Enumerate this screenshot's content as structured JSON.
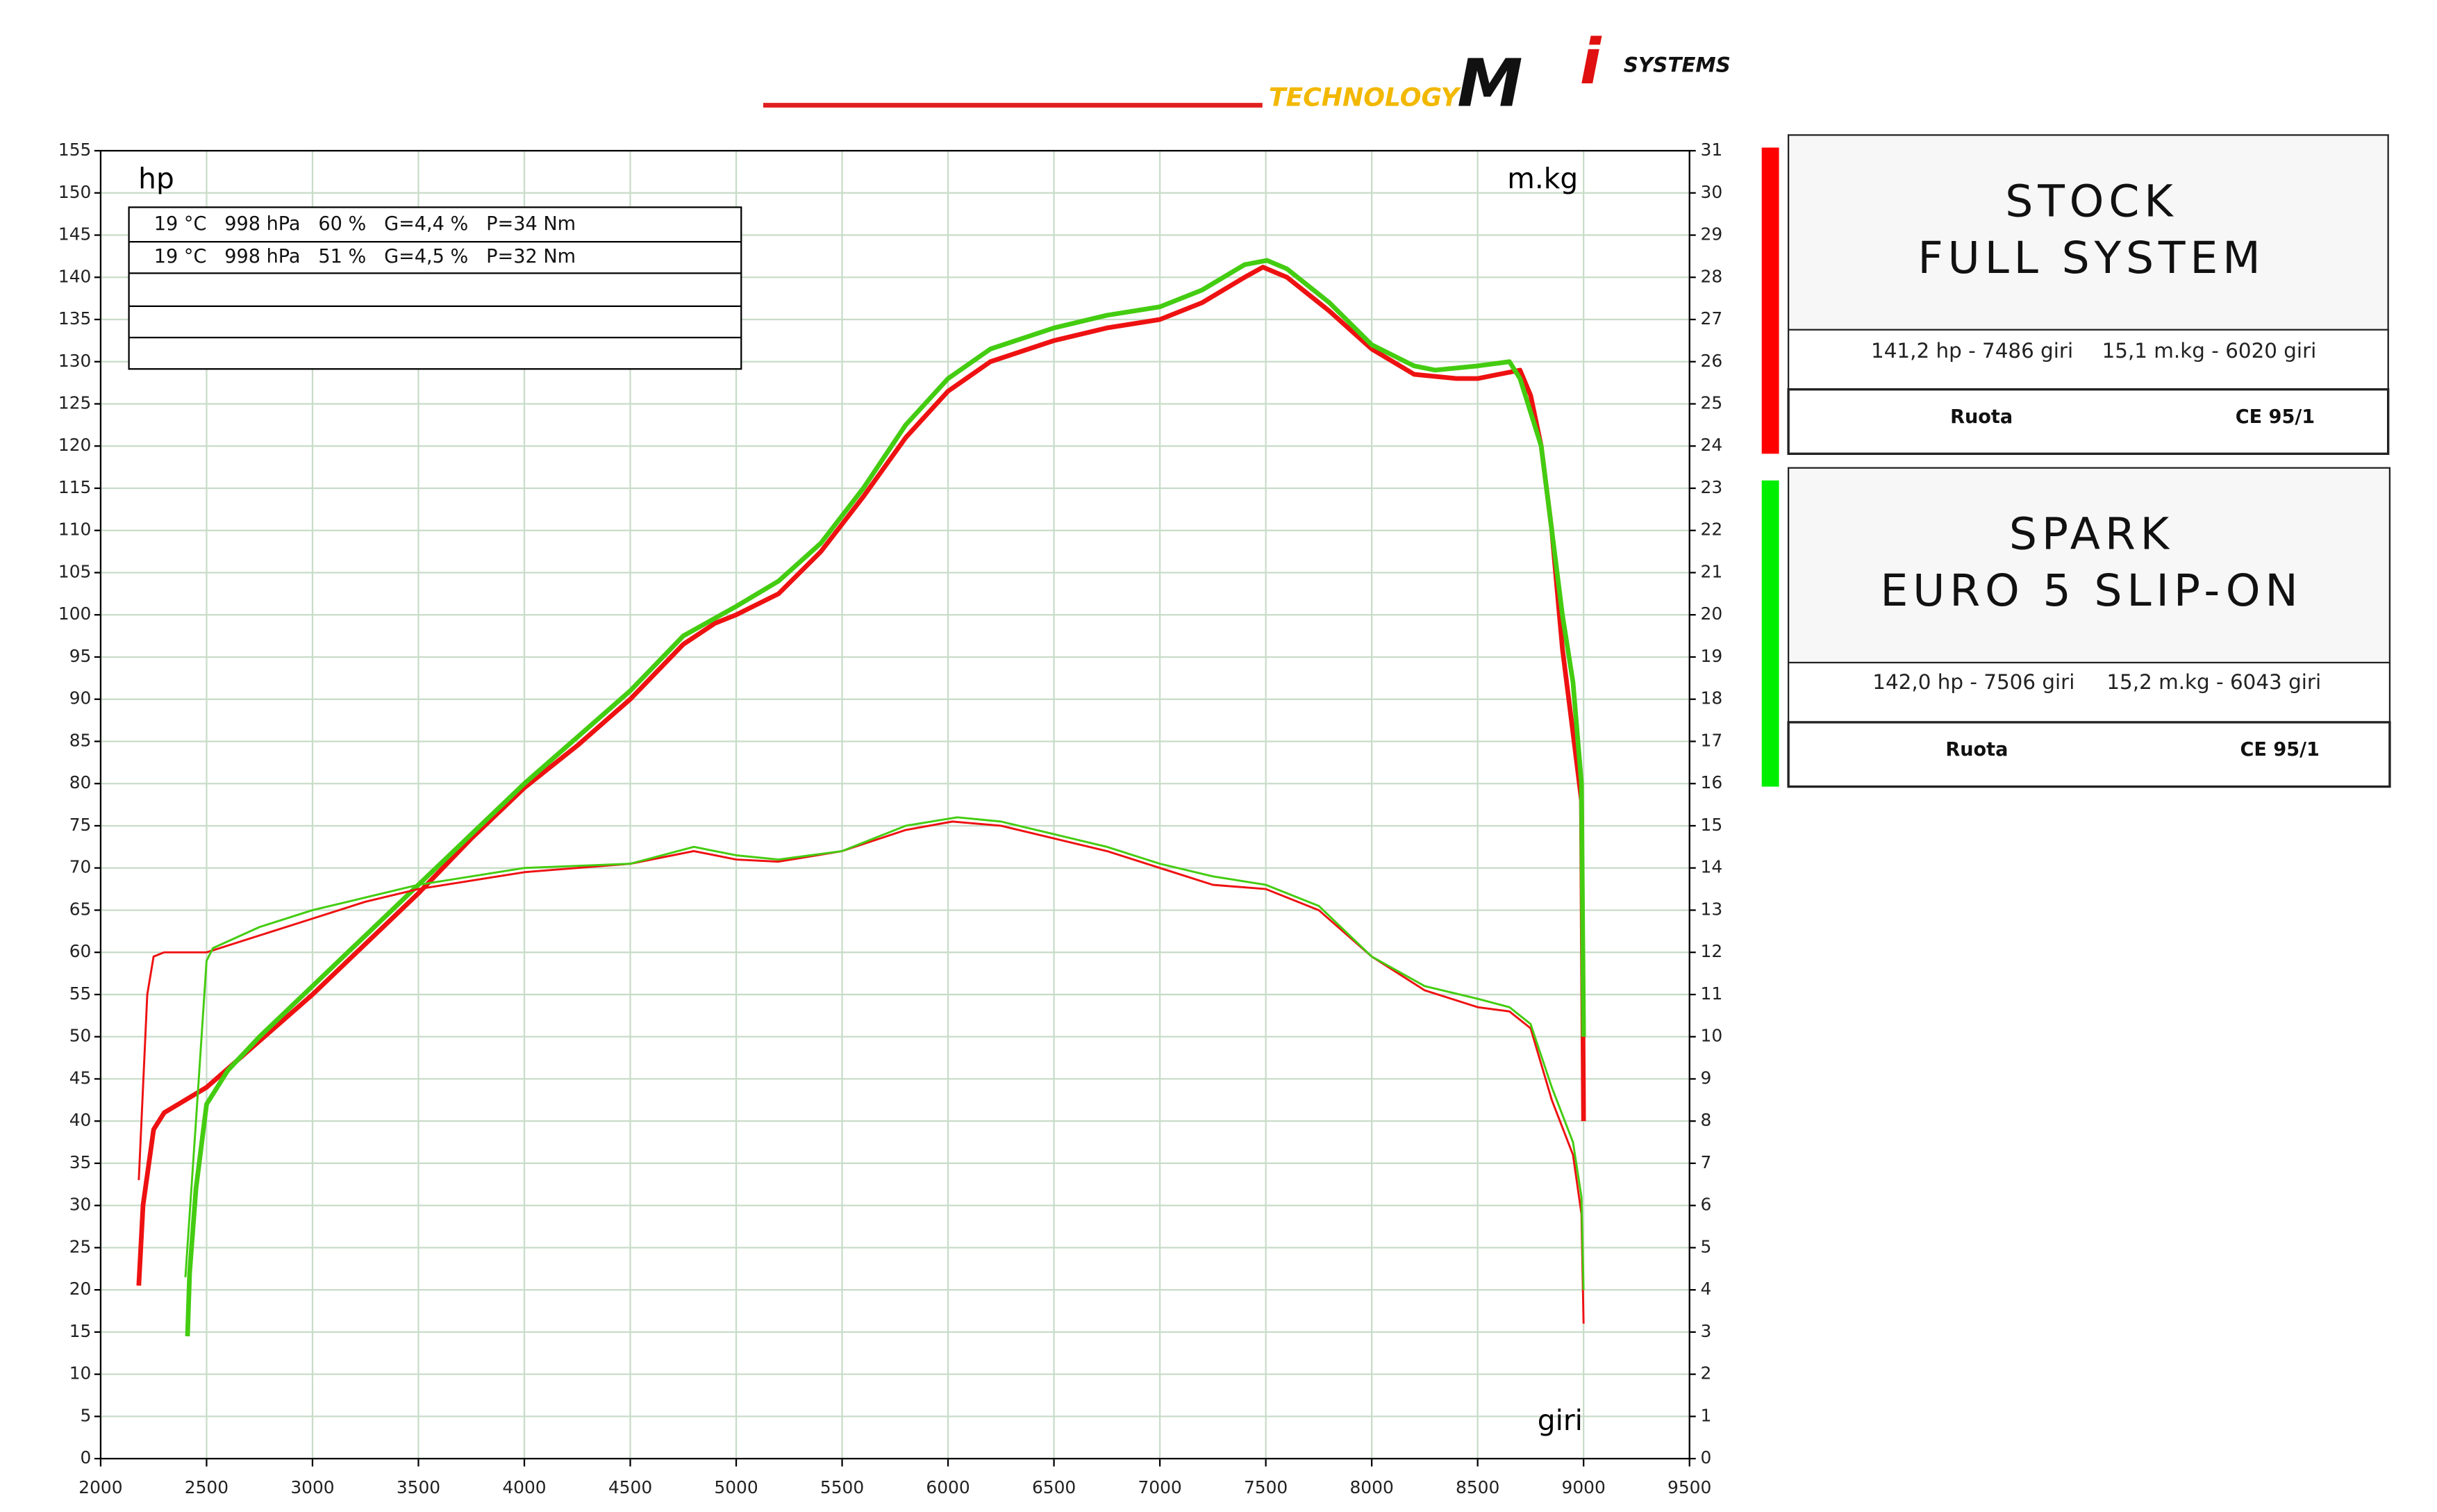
{
  "logo": {
    "brand": "TECHNOLOGY",
    "mark": "M",
    "accent": "i",
    "name": "SYSTEMS"
  },
  "conditions": [
    "19 °C   998 hPa   60 %   G=4,4 %   P=34 Nm",
    "19 °C   998 hPa   51 %   G=4,5 %   P=32 Nm"
  ],
  "panels": [
    {
      "title_lines": [
        "STOCK",
        "FULL SYSTEM"
      ],
      "power": "141,2 hp - 7486 giri",
      "torque": "15,1 m.kg - 6020 giri",
      "mode": "Ruota",
      "norm": "CE 95/1",
      "color": "#ff0000"
    },
    {
      "title_lines": [
        "SPARK",
        "EURO 5 SLIP-ON"
      ],
      "power": "142,0 hp - 7506 giri",
      "torque": "15,2 m.kg - 6043 giri",
      "mode": "Ruota",
      "norm": "CE 95/1",
      "color": "#00ee00"
    }
  ],
  "chart_data": {
    "type": "line",
    "y_label": "hp",
    "y2_label": "m.kg",
    "x_label": "giri",
    "xlim": [
      2000,
      9500
    ],
    "xticks": [
      2000,
      2500,
      3000,
      3500,
      4000,
      4500,
      5000,
      5500,
      6000,
      6500,
      7000,
      7500,
      8000,
      8500,
      9000,
      9500
    ],
    "ylim": [
      0,
      155
    ],
    "yticks": [
      0,
      5,
      10,
      15,
      20,
      25,
      30,
      35,
      40,
      45,
      50,
      55,
      60,
      65,
      70,
      75,
      80,
      85,
      90,
      95,
      100,
      105,
      110,
      115,
      120,
      125,
      130,
      135,
      140,
      145,
      150,
      155
    ],
    "y2lim": [
      0,
      31
    ],
    "y2ticks": [
      0,
      1,
      2,
      3,
      4,
      5,
      6,
      7,
      8,
      9,
      10,
      11,
      12,
      13,
      14,
      15,
      16,
      17,
      18,
      19,
      20,
      21,
      22,
      23,
      24,
      25,
      26,
      27,
      28,
      29,
      30,
      31
    ],
    "grid": true,
    "series": [
      {
        "name": "STOCK FULL SYSTEM",
        "color": "#ee1111",
        "width": 3,
        "x": [
          2180,
          2200,
          2250,
          2300,
          2400,
          2500,
          2750,
          3000,
          3250,
          3500,
          3750,
          4000,
          4250,
          4500,
          4750,
          4900,
          5000,
          5200,
          5400,
          5600,
          5800,
          6000,
          6200,
          6500,
          6750,
          7000,
          7200,
          7400,
          7486,
          7600,
          7800,
          8000,
          8200,
          8400,
          8500,
          8600,
          8700,
          8750,
          8800,
          8850,
          8900,
          8950,
          8990,
          9000
        ],
        "values": [
          20.5,
          30,
          39,
          41,
          42.5,
          44,
          49.5,
          55,
          61,
          67,
          73.5,
          79.5,
          84.5,
          90,
          96.5,
          99,
          100,
          102.5,
          107.5,
          114,
          121,
          126.5,
          130,
          132.5,
          134,
          135,
          137,
          140,
          141.2,
          140,
          136,
          131.5,
          128.5,
          128,
          128,
          128.5,
          129,
          126,
          120,
          110,
          96,
          86,
          78,
          40
        ]
      },
      {
        "name": "SPARK EURO 5 SLIP-ON",
        "color": "#44cc11",
        "width": 3,
        "x": [
          2410,
          2420,
          2450,
          2500,
          2600,
          2750,
          3000,
          3250,
          3500,
          3750,
          4000,
          4250,
          4500,
          4750,
          5000,
          5200,
          5400,
          5600,
          5800,
          6000,
          6200,
          6500,
          6750,
          7000,
          7200,
          7400,
          7506,
          7600,
          7800,
          8000,
          8200,
          8300,
          8500,
          8650,
          8700,
          8800,
          8900,
          8950,
          8990,
          9000
        ],
        "values": [
          14.5,
          22,
          32,
          42,
          46,
          50,
          56,
          62,
          68,
          74,
          80,
          85.5,
          91,
          97.5,
          101,
          104,
          108.5,
          115,
          122.5,
          128,
          131.5,
          134,
          135.5,
          136.5,
          138.5,
          141.5,
          142.0,
          141,
          137,
          132,
          129.5,
          129,
          129.5,
          130,
          128,
          120,
          100,
          92,
          80,
          50
        ]
      },
      {
        "name": "STOCK FULL SYSTEM",
        "color": "#ee1111",
        "width": 1.3,
        "axis": "y2",
        "x": [
          2180,
          2220,
          2250,
          2300,
          2500,
          2750,
          3000,
          3250,
          3500,
          4000,
          4250,
          4500,
          4800,
          5000,
          5200,
          5500,
          5800,
          6020,
          6250,
          6500,
          6750,
          7000,
          7250,
          7500,
          7750,
          8000,
          8250,
          8500,
          8650,
          8750,
          8850,
          8950,
          8990,
          9000
        ],
        "values": [
          6.6,
          11,
          11.9,
          12,
          12,
          12.4,
          12.8,
          13.2,
          13.5,
          13.9,
          14.0,
          14.1,
          14.4,
          14.2,
          14.15,
          14.4,
          14.9,
          15.1,
          15.0,
          14.7,
          14.4,
          14.0,
          13.6,
          13.5,
          13.0,
          11.9,
          11.1,
          10.7,
          10.6,
          10.2,
          8.5,
          7.2,
          5.8,
          3.2
        ]
      },
      {
        "name": "SPARK EURO 5 SLIP-ON",
        "color": "#44cc11",
        "width": 1.3,
        "axis": "y2",
        "x": [
          2400,
          2450,
          2500,
          2530,
          2750,
          3000,
          3250,
          3500,
          4000,
          4500,
          4800,
          5000,
          5200,
          5500,
          5800,
          6043,
          6250,
          6500,
          6750,
          7000,
          7250,
          7500,
          7750,
          8000,
          8250,
          8500,
          8650,
          8750,
          8850,
          8950,
          8990,
          9000
        ],
        "values": [
          4.3,
          8,
          11.8,
          12.1,
          12.6,
          13.0,
          13.3,
          13.6,
          14.0,
          14.1,
          14.5,
          14.3,
          14.2,
          14.4,
          15.0,
          15.2,
          15.1,
          14.8,
          14.5,
          14.1,
          13.8,
          13.6,
          13.1,
          11.9,
          11.2,
          10.9,
          10.7,
          10.3,
          8.8,
          7.5,
          6.2,
          4.0
        ]
      }
    ]
  }
}
